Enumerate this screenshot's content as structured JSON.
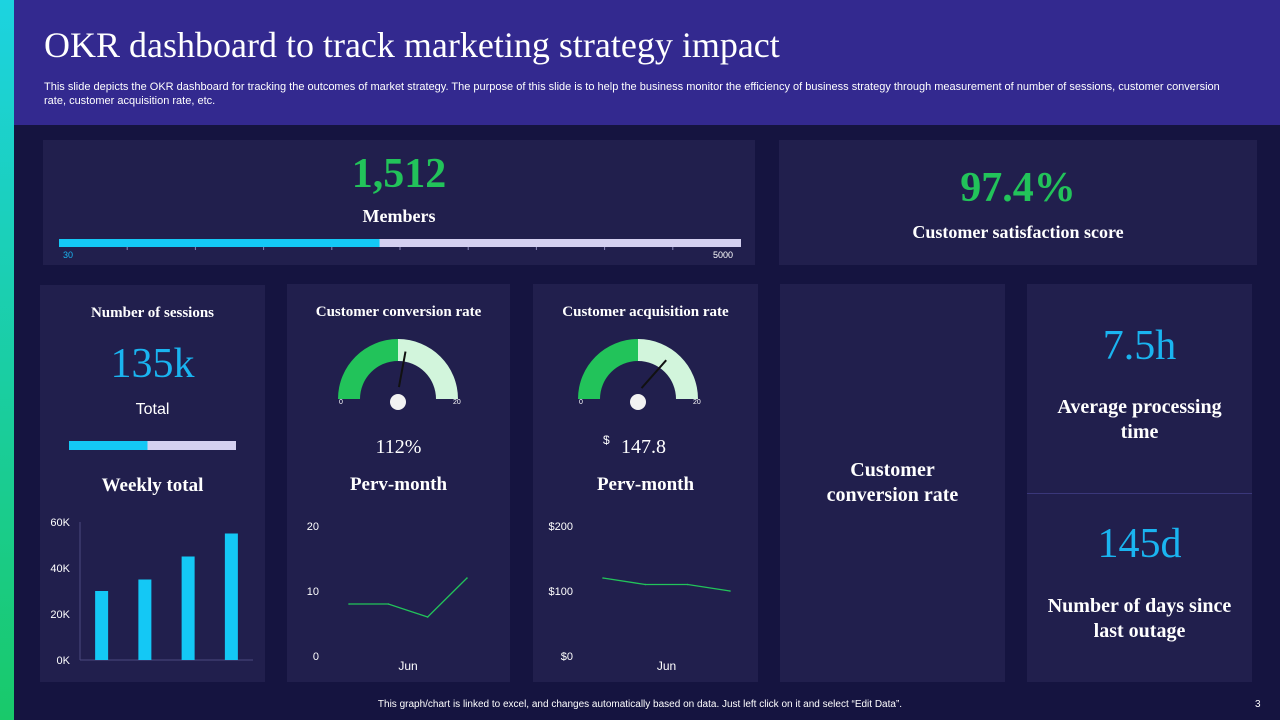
{
  "header": {
    "title": "OKR dashboard to track marketing strategy impact",
    "subtitle": "This slide depicts the OKR dashboard for tracking the outcomes of market strategy. The purpose of this slide is to help the business monitor the efficiency of business strategy through measurement of number of sessions, customer conversion rate, customer acquisition rate, etc."
  },
  "members": {
    "value": "1,512",
    "label": "Members",
    "bar_min": "30",
    "bar_max": "5000",
    "fill_fraction": 0.47
  },
  "satisfaction": {
    "value": "97.4%",
    "label": "Customer satisfaction score"
  },
  "sessions": {
    "title": "Number of sessions",
    "value": "135k",
    "sub": "Total",
    "fill_fraction": 0.47,
    "chart_title": "Weekly total"
  },
  "conversion": {
    "title": "Customer conversion rate",
    "gauge_min": "0",
    "gauge_max": "20",
    "value": "112%",
    "chart_title": "Perv-month"
  },
  "acquisition": {
    "title": "Customer acquisition rate",
    "gauge_min": "0",
    "gauge_max": "20",
    "currency": "$",
    "value": "147.8",
    "chart_title": "Perv-month"
  },
  "middle_card": {
    "label": "Customer conversion rate"
  },
  "processing": {
    "value": "7.5h",
    "label": "Average processing time"
  },
  "outage": {
    "value": "145d",
    "label": "Number of days since last outage"
  },
  "footer": {
    "note": "This graph/chart is linked to excel, and changes automatically based on data. Just left click on it and select “Edit Data”.",
    "page": "3"
  },
  "colors": {
    "green": "#22c35a",
    "cyan": "#1ab4f0",
    "bar": "#14c8f5",
    "track": "#d4d0f0",
    "card": "#211f4d",
    "header": "#33298f"
  },
  "chart_data": [
    {
      "type": "bar",
      "title": "Weekly total",
      "categories": [
        "",
        "",
        "",
        ""
      ],
      "values": [
        30000,
        35000,
        45000,
        55000
      ],
      "ylim": [
        0,
        60000
      ],
      "yticks": [
        0,
        20000,
        40000,
        60000
      ],
      "ytick_labels": [
        "0K",
        "20K",
        "40K",
        "60K"
      ],
      "grid": false
    },
    {
      "type": "line",
      "title": "Perv-month",
      "xlabel": "Jun",
      "values": [
        8,
        8,
        6,
        12
      ],
      "ylim": [
        0,
        20
      ],
      "yticks": [
        0,
        10,
        20
      ],
      "ytick_labels": [
        "0",
        "10",
        "20"
      ],
      "grid": false
    },
    {
      "type": "line",
      "title": "Perv-month",
      "xlabel": "Jun",
      "values": [
        120,
        110,
        110,
        100
      ],
      "ylim": [
        0,
        200
      ],
      "yticks": [
        0,
        100,
        200
      ],
      "ytick_labels": [
        "$0",
        "$100",
        "$200"
      ],
      "grid": false
    }
  ],
  "gauges": [
    {
      "name": "conversion-gauge",
      "fraction": 0.55
    },
    {
      "name": "acquisition-gauge",
      "fraction": 0.7
    }
  ]
}
